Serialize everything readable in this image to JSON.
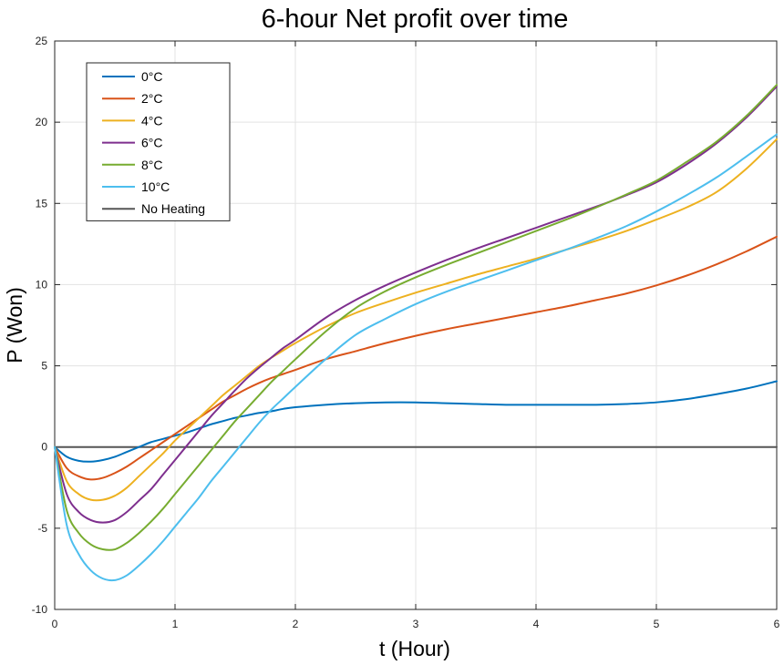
{
  "chart_data": {
    "type": "line",
    "title": "6-hour Net profit over time",
    "xlabel": "t (Hour)",
    "ylabel": "P (Won)",
    "xlim": [
      0,
      6
    ],
    "ylim": [
      -10,
      25
    ],
    "xticks": [
      0,
      1,
      2,
      3,
      4,
      5,
      6
    ],
    "yticks": [
      -10,
      -5,
      0,
      5,
      10,
      15,
      20,
      25
    ],
    "grid": true,
    "legend_position": "top-left",
    "x": [
      0,
      0.1,
      0.2,
      0.3,
      0.4,
      0.5,
      0.6,
      0.7,
      0.8,
      0.9,
      1.0,
      1.1,
      1.2,
      1.3,
      1.4,
      1.5,
      1.6,
      1.7,
      1.8,
      1.9,
      2.0,
      2.25,
      2.5,
      2.75,
      3.0,
      3.25,
      3.5,
      3.75,
      4.0,
      4.25,
      4.5,
      4.75,
      5.0,
      5.25,
      5.5,
      5.75,
      6.0
    ],
    "series": [
      {
        "name": "0°C",
        "color": "#0072BD",
        "values": [
          0,
          -0.6,
          -0.85,
          -0.9,
          -0.8,
          -0.6,
          -0.3,
          0,
          0.3,
          0.5,
          0.7,
          0.9,
          1.15,
          1.4,
          1.6,
          1.8,
          1.95,
          2.1,
          2.2,
          2.35,
          2.45,
          2.6,
          2.7,
          2.75,
          2.75,
          2.7,
          2.65,
          2.6,
          2.6,
          2.6,
          2.6,
          2.65,
          2.75,
          2.95,
          3.25,
          3.6,
          4.05
        ]
      },
      {
        "name": "2°C",
        "color": "#D95319",
        "values": [
          0,
          -1.3,
          -1.8,
          -2.0,
          -1.9,
          -1.6,
          -1.2,
          -0.7,
          -0.2,
          0.3,
          0.8,
          1.3,
          1.8,
          2.3,
          2.8,
          3.2,
          3.6,
          3.95,
          4.25,
          4.5,
          4.75,
          5.4,
          5.9,
          6.4,
          6.85,
          7.25,
          7.6,
          7.95,
          8.3,
          8.65,
          9.05,
          9.45,
          9.95,
          10.55,
          11.25,
          12.05,
          12.95
        ]
      },
      {
        "name": "4°C",
        "color": "#EDB120",
        "values": [
          0,
          -2.1,
          -2.9,
          -3.25,
          -3.25,
          -3.0,
          -2.5,
          -1.8,
          -1.1,
          -0.4,
          0.4,
          1.1,
          1.8,
          2.5,
          3.2,
          3.8,
          4.4,
          5.0,
          5.5,
          5.95,
          6.4,
          7.4,
          8.25,
          8.9,
          9.5,
          10.05,
          10.6,
          11.1,
          11.6,
          12.15,
          12.7,
          13.3,
          14.0,
          14.75,
          15.7,
          17.15,
          18.95
        ]
      },
      {
        "name": "6°C",
        "color": "#7E2F8E",
        "values": [
          0,
          -2.9,
          -4.0,
          -4.5,
          -4.65,
          -4.5,
          -4.0,
          -3.3,
          -2.6,
          -1.7,
          -0.8,
          0.1,
          1.0,
          1.9,
          2.7,
          3.5,
          4.25,
          4.9,
          5.5,
          6.1,
          6.6,
          7.95,
          9.05,
          9.95,
          10.75,
          11.5,
          12.2,
          12.85,
          13.5,
          14.15,
          14.8,
          15.5,
          16.3,
          17.4,
          18.7,
          20.3,
          22.2
        ]
      },
      {
        "name": "8°C",
        "color": "#77AC30",
        "values": [
          0,
          -3.9,
          -5.3,
          -6.0,
          -6.3,
          -6.3,
          -5.9,
          -5.3,
          -4.6,
          -3.8,
          -2.9,
          -2.0,
          -1.1,
          -0.2,
          0.7,
          1.6,
          2.4,
          3.2,
          4.0,
          4.7,
          5.4,
          7.1,
          8.55,
          9.6,
          10.45,
          11.2,
          11.9,
          12.6,
          13.3,
          14.0,
          14.75,
          15.55,
          16.4,
          17.55,
          18.8,
          20.4,
          22.3
        ]
      },
      {
        "name": "10°C",
        "color": "#4DBEEE",
        "values": [
          0,
          -4.8,
          -6.6,
          -7.6,
          -8.1,
          -8.2,
          -7.9,
          -7.3,
          -6.6,
          -5.8,
          -4.9,
          -4.0,
          -3.1,
          -2.1,
          -1.2,
          -0.3,
          0.6,
          1.5,
          2.3,
          3.0,
          3.7,
          5.4,
          6.9,
          7.9,
          8.8,
          9.55,
          10.2,
          10.85,
          11.5,
          12.15,
          12.85,
          13.6,
          14.5,
          15.5,
          16.6,
          17.9,
          19.25
        ]
      },
      {
        "name": "No Heating",
        "color": "#555555",
        "values": [
          0,
          0,
          0,
          0,
          0,
          0,
          0,
          0,
          0,
          0,
          0,
          0,
          0,
          0,
          0,
          0,
          0,
          0,
          0,
          0,
          0,
          0,
          0,
          0,
          0,
          0,
          0,
          0,
          0,
          0,
          0,
          0,
          0,
          0,
          0,
          0,
          0
        ]
      }
    ]
  }
}
